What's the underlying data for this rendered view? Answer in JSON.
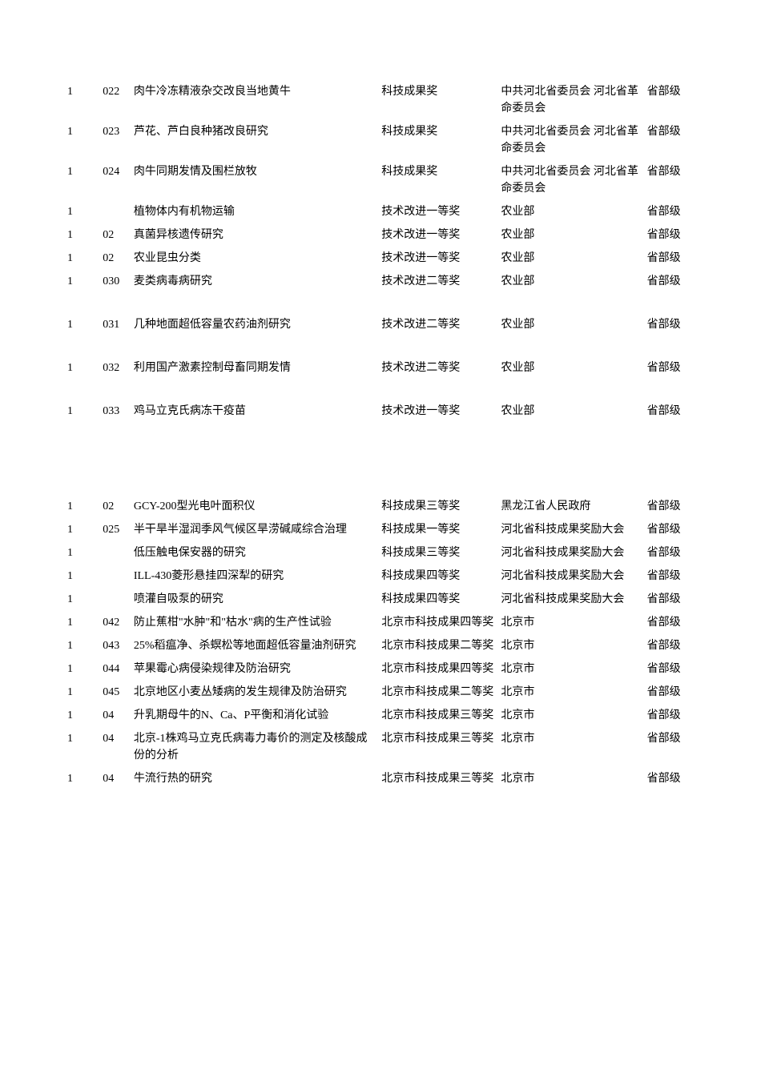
{
  "rows": [
    {
      "num": "1",
      "code": "022",
      "title": "肉牛冷冻精液杂交改良当地黄牛",
      "award": "科技成果奖",
      "org": "中共河北省委员会 河北省革命委员会",
      "level": "省部级"
    },
    {
      "num": "1",
      "code": "023",
      "title": "芦花、芦白良种猪改良研究",
      "award": "科技成果奖",
      "org": "中共河北省委员会 河北省革命委员会",
      "level": "省部级"
    },
    {
      "num": "1",
      "code": "024",
      "title": "肉牛同期发情及围栏放牧",
      "award": "科技成果奖",
      "org": "中共河北省委员会 河北省革命委员会",
      "level": "省部级"
    },
    {
      "num": "1",
      "code": "",
      "title": "植物体内有机物运输",
      "award": "技术改进一等奖",
      "org": "农业部",
      "level": "省部级"
    },
    {
      "num": "1",
      "code": "02",
      "title": "真菌异核遗传研究",
      "award": "技术改进一等奖",
      "org": "农业部",
      "level": "省部级"
    },
    {
      "num": "1",
      "code": "02",
      "title": "农业昆虫分类",
      "award": "技术改进一等奖",
      "org": "农业部",
      "level": "省部级"
    },
    {
      "num": "1",
      "code": "030",
      "title": "麦类病毒病研究",
      "award": "技术改进二等奖",
      "org": "农业部",
      "level": "省部级"
    },
    {
      "num": "1",
      "code": "031",
      "title": "几种地面超低容量农药油剂研究",
      "award": "技术改进二等奖",
      "org": "农业部",
      "level": "省部级"
    },
    {
      "num": "1",
      "code": "032",
      "title": "利用国产激素控制母畜同期发情",
      "award": "技术改进二等奖",
      "org": "农业部",
      "level": "省部级"
    },
    {
      "num": "1",
      "code": "033",
      "title": "鸡马立克氏病冻干疫苗",
      "award": "技术改进一等奖",
      "org": "农业部",
      "level": "省部级"
    },
    {
      "num": "1",
      "code": "02",
      "title": "GCY-200型光电叶面积仪",
      "award": "科技成果三等奖",
      "org": "黑龙江省人民政府",
      "level": "省部级"
    },
    {
      "num": "1",
      "code": "025",
      "title": "半干旱半湿润季风气候区旱涝碱咸综合治理",
      "award": "科技成果一等奖",
      "org": "河北省科技成果奖励大会",
      "level": "省部级"
    },
    {
      "num": "1",
      "code": "",
      "title": "低压触电保安器的研究",
      "award": "科技成果三等奖",
      "org": "河北省科技成果奖励大会",
      "level": "省部级"
    },
    {
      "num": "1",
      "code": "",
      "title": "ILL-430菱形悬挂四深犁的研究",
      "award": "科技成果四等奖",
      "org": "河北省科技成果奖励大会",
      "level": "省部级"
    },
    {
      "num": "1",
      "code": "",
      "title": "喷灌自吸泵的研究",
      "award": "科技成果四等奖",
      "org": "河北省科技成果奖励大会",
      "level": "省部级"
    },
    {
      "num": "1",
      "code": "042",
      "title": "防止蕉柑\"水肿\"和\"枯水\"病的生产性试验",
      "award": "北京市科技成果四等奖",
      "org": "北京市",
      "level": "省部级"
    },
    {
      "num": "1",
      "code": "043",
      "title": "25%稻瘟净、杀螟松等地面超低容量油剂研究",
      "award": "北京市科技成果二等奖",
      "org": "北京市",
      "level": "省部级"
    },
    {
      "num": "1",
      "code": "044",
      "title": "苹果霉心病侵染规律及防治研究",
      "award": "北京市科技成果四等奖",
      "org": "北京市",
      "level": "省部级"
    },
    {
      "num": "1",
      "code": "045",
      "title": "北京地区小麦丛矮病的发生规律及防治研究",
      "award": "北京市科技成果二等奖",
      "org": "北京市",
      "level": "省部级"
    },
    {
      "num": "1",
      "code": "04",
      "title": "升乳期母牛的N、Ca、P平衡和消化试验",
      "award": "北京市科技成果三等奖",
      "org": "北京市",
      "level": "省部级"
    },
    {
      "num": "1",
      "code": "04",
      "title": "北京-1株鸡马立克氏病毒力毒价的测定及核酸成份的分析",
      "award": "北京市科技成果三等奖",
      "org": "北京市",
      "level": "省部级"
    },
    {
      "num": "1",
      "code": "04",
      "title": "牛流行热的研究",
      "award": "北京市科技成果三等奖",
      "org": "北京市",
      "level": "省部级"
    }
  ],
  "gaps_after": [
    6,
    7,
    8
  ],
  "big_gaps_after": [
    9
  ]
}
